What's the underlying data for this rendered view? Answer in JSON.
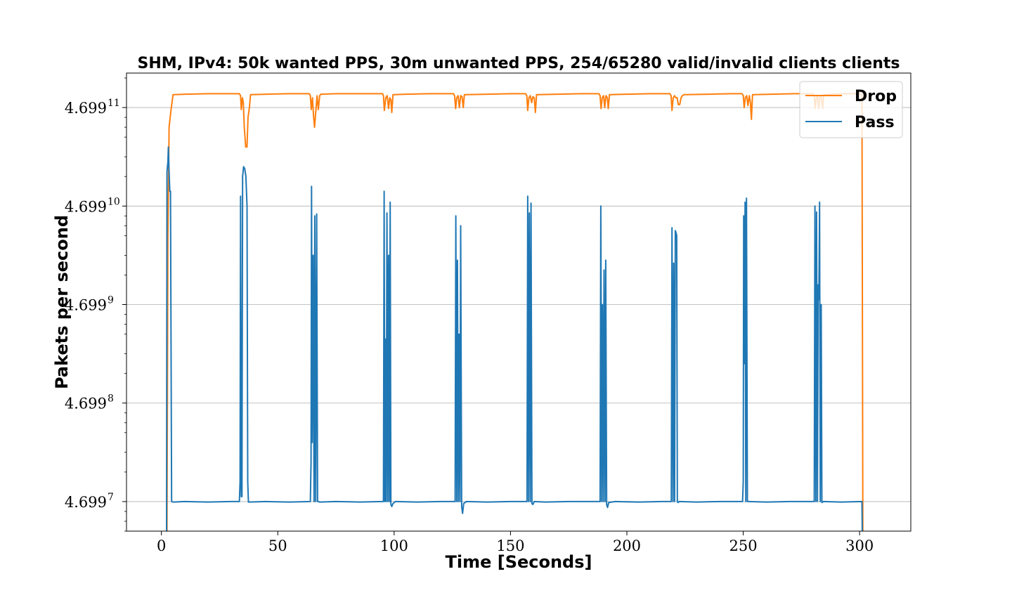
{
  "chart_data": {
    "type": "line",
    "title": "SHM, IPv4: 50k wanted PPS, 30m unwanted PPS, 254/65280 valid/invalid clients clients",
    "xlabel": "Time [Seconds]",
    "ylabel": "Pakets per second",
    "xlim": [
      -15,
      322
    ],
    "ylim_exponent": [
      6.7,
      11.35
    ],
    "y_scale": "log",
    "y_tick_base": "4.699",
    "x_ticks": [
      "0",
      "50",
      "100",
      "150",
      "200",
      "250",
      "300"
    ],
    "y_ticks": [
      {
        "base": "4.699",
        "exp": "7"
      },
      {
        "base": "4.699",
        "exp": "8"
      },
      {
        "base": "4.699",
        "exp": "9"
      },
      {
        "base": "4.699",
        "exp": "10"
      },
      {
        "base": "4.699",
        "exp": "11"
      }
    ],
    "grid": "horizontal",
    "legend_position": "top-right",
    "series": [
      {
        "name": "Drop",
        "color": "#ff7f0e",
        "points": [
          [
            2.4,
            6.6
          ],
          [
            2.8,
            9.7
          ],
          [
            3.3,
            10.8
          ],
          [
            4.0,
            10.95
          ],
          [
            5,
            11.13
          ],
          [
            10,
            11.135
          ],
          [
            20,
            11.14
          ],
          [
            30,
            11.14
          ],
          [
            33.5,
            11.14
          ],
          [
            34.0,
            11.12
          ],
          [
            34.3,
            10.98
          ],
          [
            34.8,
            11.1
          ],
          [
            35.2,
            11.05
          ],
          [
            35.6,
            10.8
          ],
          [
            36.2,
            10.6
          ],
          [
            36.8,
            10.6
          ],
          [
            37.2,
            10.9
          ],
          [
            37.8,
            11.0
          ],
          [
            38.3,
            11.13
          ],
          [
            45,
            11.135
          ],
          [
            55,
            11.14
          ],
          [
            63.5,
            11.14
          ],
          [
            64.0,
            11.12
          ],
          [
            64.4,
            10.98
          ],
          [
            64.9,
            11.1
          ],
          [
            65.4,
            10.9
          ],
          [
            65.8,
            10.8
          ],
          [
            66.3,
            10.95
          ],
          [
            66.9,
            11.12
          ],
          [
            67.4,
            10.98
          ],
          [
            68.0,
            11.12
          ],
          [
            68.5,
            11.135
          ],
          [
            75,
            11.14
          ],
          [
            85,
            11.14
          ],
          [
            95.0,
            11.14
          ],
          [
            95.4,
            11.12
          ],
          [
            95.8,
            10.97
          ],
          [
            96.4,
            11.1
          ],
          [
            97.0,
            11.12
          ],
          [
            97.6,
            10.99
          ],
          [
            98.1,
            11.1
          ],
          [
            98.6,
            11.08
          ],
          [
            99.0,
            10.95
          ],
          [
            99.5,
            11.13
          ],
          [
            105,
            11.135
          ],
          [
            115,
            11.14
          ],
          [
            125.5,
            11.14
          ],
          [
            126.0,
            11.12
          ],
          [
            126.4,
            10.99
          ],
          [
            126.9,
            11.1
          ],
          [
            127.5,
            11.12
          ],
          [
            128.0,
            11.0
          ],
          [
            128.6,
            11.12
          ],
          [
            129.2,
            11.11
          ],
          [
            129.7,
            11.0
          ],
          [
            130.2,
            11.13
          ],
          [
            140,
            11.135
          ],
          [
            150,
            11.14
          ],
          [
            156.5,
            11.14
          ],
          [
            157.0,
            11.12
          ],
          [
            157.4,
            10.97
          ],
          [
            157.9,
            11.1
          ],
          [
            158.5,
            11.12
          ],
          [
            159.1,
            11.05
          ],
          [
            159.6,
            11.11
          ],
          [
            160.2,
            11.1
          ],
          [
            160.7,
            10.95
          ],
          [
            161.2,
            11.13
          ],
          [
            170,
            11.135
          ],
          [
            180,
            11.14
          ],
          [
            188.0,
            11.14
          ],
          [
            188.5,
            11.12
          ],
          [
            188.9,
            10.99
          ],
          [
            189.4,
            11.1
          ],
          [
            190.0,
            11.12
          ],
          [
            190.5,
            11.0
          ],
          [
            191.0,
            11.12
          ],
          [
            191.6,
            11.1
          ],
          [
            192.0,
            10.99
          ],
          [
            192.5,
            11.13
          ],
          [
            200,
            11.135
          ],
          [
            210,
            11.14
          ],
          [
            218.5,
            11.14
          ],
          [
            219.0,
            11.12
          ],
          [
            219.4,
            10.97
          ],
          [
            219.9,
            11.1
          ],
          [
            220.5,
            11.12
          ],
          [
            221.0,
            11.1
          ],
          [
            221.6,
            11.1
          ],
          [
            222.1,
            11.03
          ],
          [
            222.7,
            11.03
          ],
          [
            223.3,
            11.1
          ],
          [
            223.9,
            11.12
          ],
          [
            224.5,
            11.13
          ],
          [
            235,
            11.135
          ],
          [
            245,
            11.14
          ],
          [
            249.5,
            11.14
          ],
          [
            250.0,
            11.12
          ],
          [
            250.4,
            11.0
          ],
          [
            250.9,
            11.1
          ],
          [
            251.5,
            11.12
          ],
          [
            252.0,
            11.02
          ],
          [
            252.6,
            11.12
          ],
          [
            253.1,
            11.05
          ],
          [
            253.5,
            10.88
          ],
          [
            254.0,
            11.13
          ],
          [
            262,
            11.135
          ],
          [
            272,
            11.14
          ],
          [
            280.0,
            11.14
          ],
          [
            280.5,
            11.12
          ],
          [
            280.9,
            10.99
          ],
          [
            281.4,
            11.1
          ],
          [
            281.9,
            11.12
          ],
          [
            282.4,
            10.99
          ],
          [
            283.0,
            11.12
          ],
          [
            283.6,
            11.1
          ],
          [
            284.1,
            10.99
          ],
          [
            284.6,
            11.13
          ],
          [
            292,
            11.14
          ],
          [
            300.5,
            11.14
          ],
          [
            301.0,
            11.13
          ],
          [
            301.4,
            6.6
          ]
        ]
      },
      {
        "name": "Pass",
        "color": "#1f77b4",
        "points": [
          [
            2.2,
            6.6
          ],
          [
            2.4,
            10.35
          ],
          [
            2.8,
            10.45
          ],
          [
            3.0,
            10.6
          ],
          [
            3.3,
            10.35
          ],
          [
            3.6,
            10.15
          ],
          [
            3.9,
            10.15
          ],
          [
            4.4,
            7.0
          ],
          [
            5.0,
            6.995
          ],
          [
            10,
            7.0
          ],
          [
            20,
            6.995
          ],
          [
            30,
            7.0
          ],
          [
            33.5,
            7.0
          ],
          [
            33.8,
            7.2
          ],
          [
            34.0,
            10.1
          ],
          [
            34.3,
            7.05
          ],
          [
            34.6,
            7.05
          ],
          [
            34.9,
            10.3
          ],
          [
            35.3,
            10.4
          ],
          [
            35.8,
            10.38
          ],
          [
            36.3,
            10.3
          ],
          [
            36.8,
            10.0
          ],
          [
            37.1,
            7.2
          ],
          [
            37.4,
            6.995
          ],
          [
            45,
            7.0
          ],
          [
            55,
            6.995
          ],
          [
            64.0,
            7.0
          ],
          [
            64.3,
            7.4
          ],
          [
            64.5,
            10.2
          ],
          [
            64.8,
            7.6
          ],
          [
            65.2,
            9.5
          ],
          [
            65.6,
            7.0
          ],
          [
            65.9,
            9.9
          ],
          [
            66.3,
            7.0
          ],
          [
            66.7,
            9.92
          ],
          [
            67.1,
            7.0
          ],
          [
            67.5,
            7.0
          ],
          [
            68.0,
            6.995
          ],
          [
            75,
            7.0
          ],
          [
            85,
            6.995
          ],
          [
            95.0,
            7.0
          ],
          [
            95.4,
            7.0
          ],
          [
            95.7,
            10.15
          ],
          [
            96.0,
            7.0
          ],
          [
            96.3,
            8.65
          ],
          [
            96.6,
            7.0
          ],
          [
            96.9,
            9.93
          ],
          [
            97.3,
            7.0
          ],
          [
            97.6,
            9.5
          ],
          [
            98.0,
            7.0
          ],
          [
            98.3,
            10.04
          ],
          [
            98.6,
            6.97
          ],
          [
            99.0,
            6.95
          ],
          [
            99.5,
            6.98
          ],
          [
            100.5,
            7.0
          ],
          [
            110,
            6.995
          ],
          [
            120,
            7.0
          ],
          [
            125.8,
            7.0
          ],
          [
            126.2,
            7.0
          ],
          [
            126.5,
            9.9
          ],
          [
            126.9,
            7.0
          ],
          [
            127.2,
            9.45
          ],
          [
            127.6,
            7.0
          ],
          [
            127.9,
            8.7
          ],
          [
            128.3,
            7.0
          ],
          [
            128.6,
            9.8
          ],
          [
            129.0,
            6.95
          ],
          [
            129.4,
            6.88
          ],
          [
            129.9,
            6.98
          ],
          [
            131,
            7.0
          ],
          [
            140,
            6.995
          ],
          [
            150,
            7.0
          ],
          [
            156.8,
            7.0
          ],
          [
            157.1,
            7.0
          ],
          [
            157.4,
            10.1
          ],
          [
            157.8,
            7.0
          ],
          [
            158.1,
            9.93
          ],
          [
            158.5,
            7.0
          ],
          [
            158.8,
            10.03
          ],
          [
            159.2,
            6.98
          ],
          [
            159.6,
            6.97
          ],
          [
            160.2,
            7.0
          ],
          [
            165,
            6.995
          ],
          [
            175,
            7.0
          ],
          [
            188.2,
            7.0
          ],
          [
            188.5,
            7.0
          ],
          [
            188.8,
            10.0
          ],
          [
            189.2,
            7.0
          ],
          [
            189.5,
            9.0
          ],
          [
            189.9,
            7.0
          ],
          [
            190.2,
            9.35
          ],
          [
            190.6,
            7.0
          ],
          [
            190.9,
            9.45
          ],
          [
            191.3,
            6.97
          ],
          [
            191.7,
            6.94
          ],
          [
            192.2,
            6.99
          ],
          [
            195,
            7.0
          ],
          [
            205,
            6.995
          ],
          [
            215,
            7.0
          ],
          [
            218.8,
            7.0
          ],
          [
            219.1,
            7.0
          ],
          [
            219.4,
            9.78
          ],
          [
            219.8,
            7.0
          ],
          [
            220.1,
            9.42
          ],
          [
            220.5,
            7.0
          ],
          [
            220.8,
            9.75
          ],
          [
            221.1,
            9.73
          ],
          [
            221.4,
            9.7
          ],
          [
            221.7,
            7.0
          ],
          [
            222.0,
            6.99
          ],
          [
            222.5,
            7.0
          ],
          [
            230,
            6.995
          ],
          [
            240,
            7.0
          ],
          [
            249.7,
            7.0
          ],
          [
            250.0,
            7.2
          ],
          [
            250.2,
            9.9
          ],
          [
            250.5,
            8.4
          ],
          [
            250.8,
            10.04
          ],
          [
            251.1,
            7.0
          ],
          [
            251.4,
            10.08
          ],
          [
            251.8,
            7.0
          ],
          [
            252.2,
            7.0
          ],
          [
            260,
            6.995
          ],
          [
            270,
            7.0
          ],
          [
            280.2,
            7.0
          ],
          [
            280.5,
            7.0
          ],
          [
            280.8,
            10.0
          ],
          [
            281.2,
            7.0
          ],
          [
            281.5,
            9.94
          ],
          [
            281.9,
            7.0
          ],
          [
            282.2,
            9.2
          ],
          [
            282.5,
            9.05
          ],
          [
            282.8,
            10.04
          ],
          [
            283.1,
            7.0
          ],
          [
            283.5,
            9.0
          ],
          [
            283.8,
            6.99
          ],
          [
            284.5,
            7.0
          ],
          [
            292,
            6.995
          ],
          [
            301.0,
            7.0
          ],
          [
            301.2,
            6.6
          ]
        ]
      }
    ]
  }
}
